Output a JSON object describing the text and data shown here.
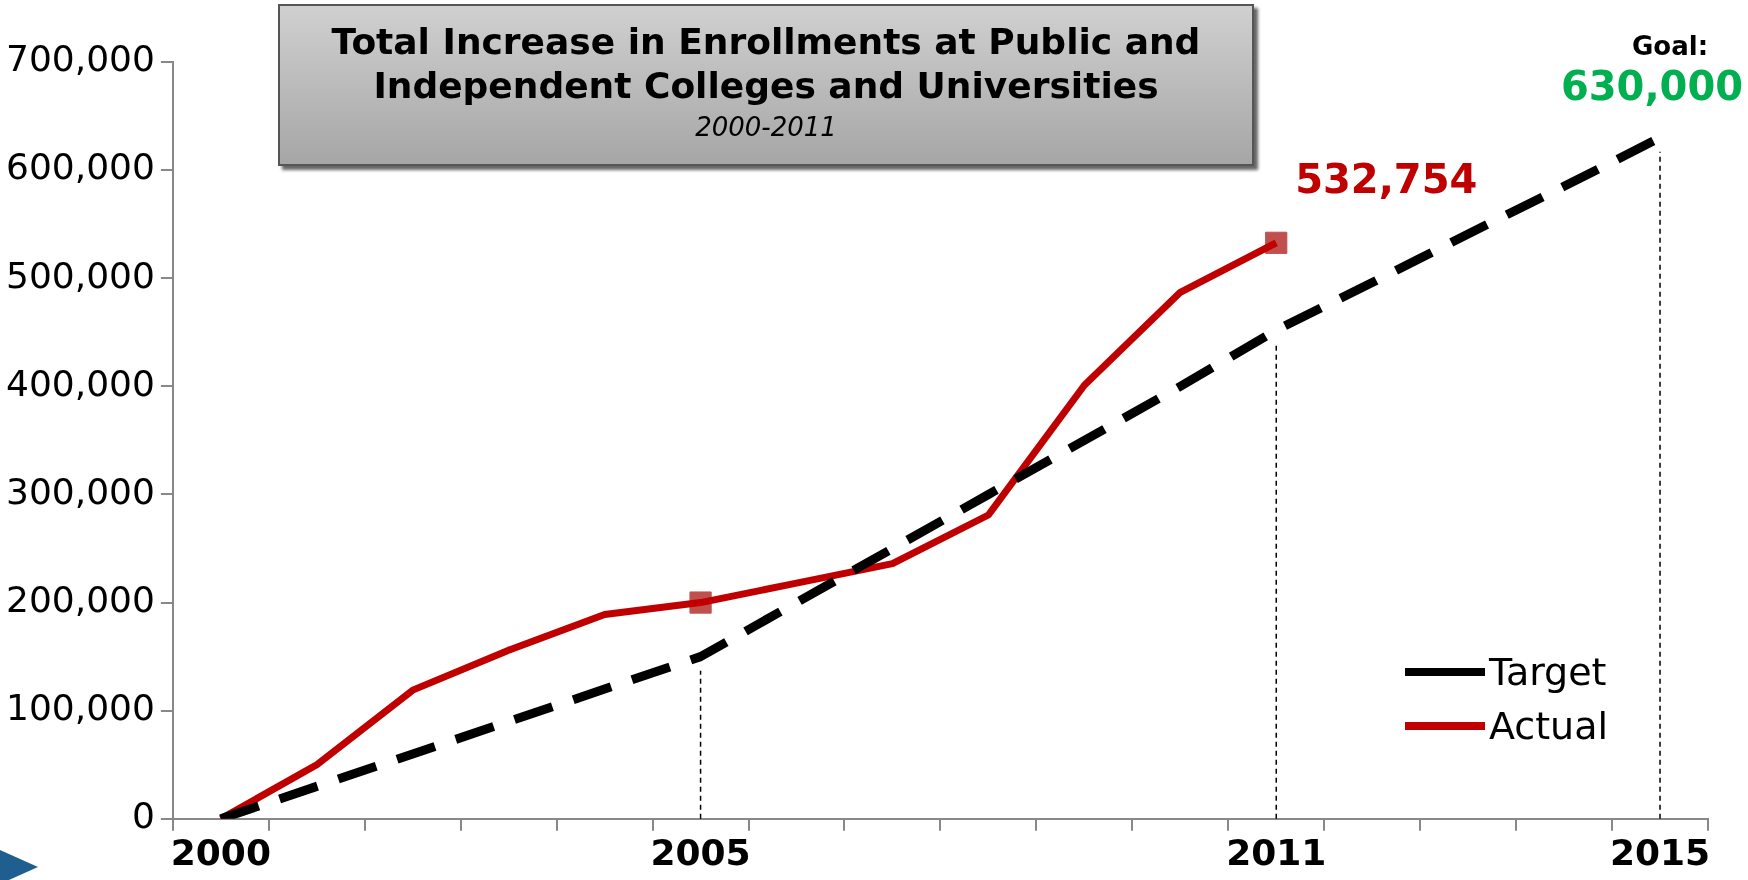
{
  "chart_data": {
    "type": "line",
    "title": "Total Increase in Enrollments at Public and Independent Colleges and Universities",
    "subtitle": "2000-2011",
    "categories": [
      "2000",
      null,
      null,
      null,
      null,
      "2005",
      null,
      null,
      null,
      null,
      null,
      "2011",
      null,
      null,
      null,
      "2015"
    ],
    "series": [
      {
        "name": "Target",
        "color": "#000000",
        "line_style": "dashed",
        "values": [
          0,
          30000,
          60000,
          90000,
          120000,
          150000,
          200000,
          250000,
          300000,
          350000,
          400000,
          452000,
          496000,
          541000,
          585000,
          630000
        ]
      },
      {
        "name": "Actual",
        "color": "#c00000",
        "line_style": "solid",
        "values": [
          0,
          50000,
          119000,
          156000,
          189000,
          200000,
          218000,
          236000,
          281000,
          401000,
          487000,
          532754,
          null,
          null,
          null,
          null
        ],
        "value_labels": [
          null,
          null,
          null,
          null,
          null,
          null,
          null,
          null,
          null,
          null,
          null,
          "532,754",
          null,
          null,
          null,
          null
        ]
      },
      {
        "type": "scatter",
        "color": "#c0504d",
        "marker": "square",
        "values": [
          null,
          null,
          null,
          null,
          null,
          200000,
          null,
          null,
          null,
          null,
          null,
          532754,
          null,
          null,
          null,
          null
        ]
      }
    ],
    "ylim": [
      0,
      700000
    ],
    "yticks": [
      {
        "value": 0,
        "label": "0"
      },
      {
        "value": 100000,
        "label": "100,000"
      },
      {
        "value": 200000,
        "label": "200,000"
      },
      {
        "value": 300000,
        "label": "300,000"
      },
      {
        "value": 400000,
        "label": "400,000"
      },
      {
        "value": 500000,
        "label": "500,000"
      },
      {
        "value": 600000,
        "label": "600,000"
      },
      {
        "value": 700000,
        "label": "700,000"
      }
    ],
    "grid": false,
    "legend": "bottom right",
    "marker": "none",
    "ref_lines": [
      {
        "axis": "x",
        "value": "2005",
        "line_style": "dashed",
        "color": "#000000"
      },
      {
        "axis": "x",
        "value": "2011",
        "line_style": "dashed",
        "color": "#000000"
      },
      {
        "axis": "x",
        "value": "2015",
        "line_style": "dashed",
        "color": "#000000"
      }
    ],
    "annotations": [
      {
        "text": "Goal:",
        "x": "2015",
        "y": 630000
      },
      {
        "text": "630,000",
        "x": "2015",
        "y": 630000
      }
    ]
  }
}
